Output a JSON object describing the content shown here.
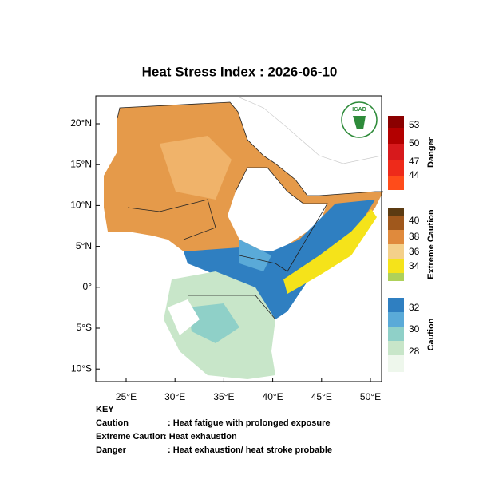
{
  "title": "Heat Stress Index : 2026-06-10",
  "logo": "IGAD",
  "lat_labels": [
    "20°N",
    "15°N",
    "10°N",
    "5°N",
    "0°",
    "5°S",
    "10°S"
  ],
  "lon_labels": [
    "25°E",
    "30°E",
    "35°E",
    "40°E",
    "45°E",
    "50°E"
  ],
  "legend": [
    {
      "name": "Danger",
      "ticks": [
        53,
        50,
        47,
        44
      ]
    },
    {
      "name": "Extreme Caution",
      "ticks": [
        40,
        38,
        36,
        34
      ]
    },
    {
      "name": "Caution",
      "ticks": [
        32,
        30,
        28
      ]
    }
  ],
  "key": {
    "title": "KEY",
    "rows": [
      [
        "Caution",
        ": Heat fatigue with prolonged exposure"
      ],
      [
        "Extreme Caution",
        " : Heat exhaustion"
      ],
      [
        "Danger",
        ": Heat exhaustion/ heat stroke probable"
      ]
    ]
  }
}
